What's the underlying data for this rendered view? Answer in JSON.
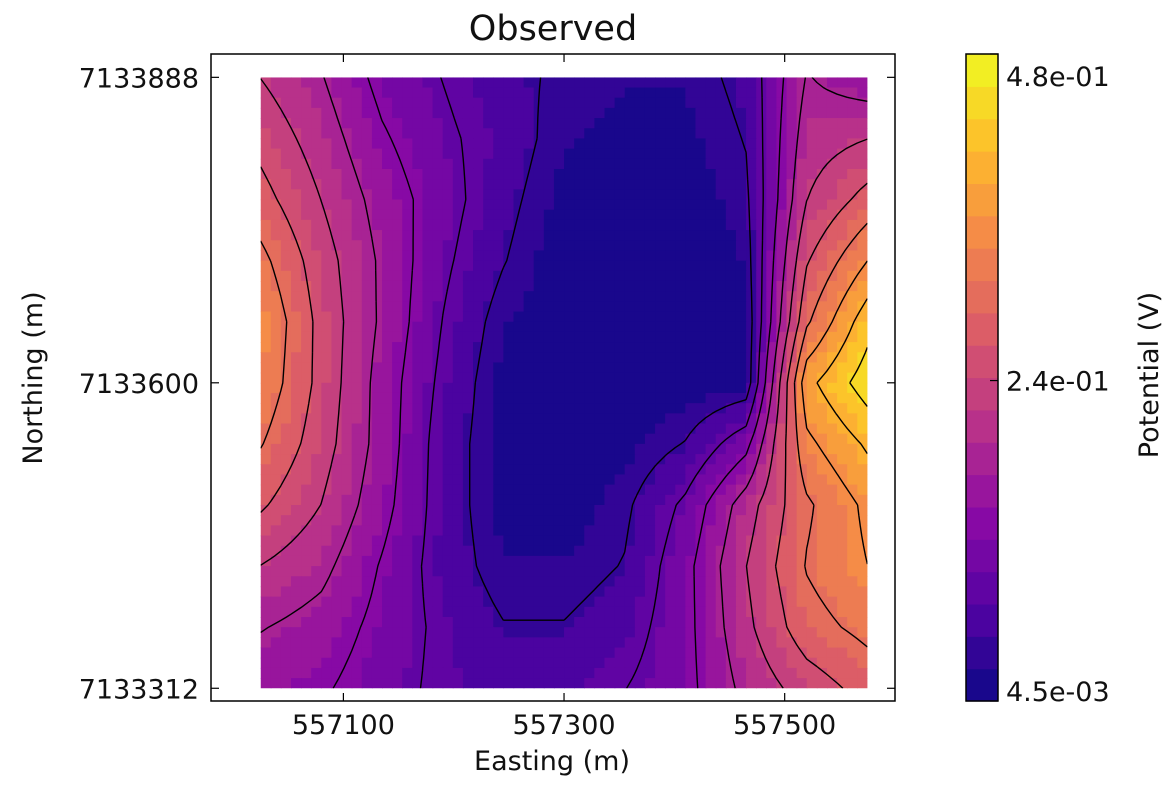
{
  "chart_data": {
    "type": "heatmap",
    "subtype": "filled-contour",
    "title": "Observed",
    "xlabel": "Easting (m)",
    "ylabel": "Northing (m)",
    "xlim": [
      556980,
      557600
    ],
    "ylim": [
      7133300,
      7133910
    ],
    "xticks": [
      557100,
      557300,
      557500
    ],
    "xtick_labels": [
      "557100",
      "557300",
      "557500"
    ],
    "yticks": [
      7133312,
      7133600,
      7133888
    ],
    "ytick_labels": [
      "7133312",
      "7133600",
      "7133888"
    ],
    "data_extent": {
      "x": [
        557025,
        557575
      ],
      "y": [
        7133312,
        7133888
      ]
    },
    "contour_lines": true,
    "grid": false,
    "colormap": "plasma",
    "colorbar": {
      "label": "Potential (V)",
      "min": 0.0045,
      "max": 0.48,
      "ticks": [
        0.0045,
        0.24,
        0.48
      ],
      "tick_labels": [
        "4.5e-03",
        "2.4e-01",
        "4.8e-01"
      ],
      "levels": 20
    },
    "x": [
      557025,
      557080,
      557135,
      557190,
      557245,
      557300,
      557355,
      557410,
      557465,
      557520,
      557575
    ],
    "y": [
      7133888,
      7133830,
      7133773,
      7133715,
      7133658,
      7133600,
      7133542,
      7133485,
      7133427,
      7133370,
      7133312
    ],
    "z": [
      [
        0.22,
        0.18,
        0.12,
        0.09,
        0.06,
        0.04,
        0.03,
        0.03,
        0.06,
        0.18,
        0.15
      ],
      [
        0.25,
        0.2,
        0.14,
        0.1,
        0.07,
        0.03,
        0.02,
        0.02,
        0.05,
        0.2,
        0.22
      ],
      [
        0.28,
        0.22,
        0.16,
        0.11,
        0.06,
        0.02,
        0.01,
        0.01,
        0.04,
        0.22,
        0.28
      ],
      [
        0.32,
        0.24,
        0.17,
        0.1,
        0.05,
        0.01,
        0.01,
        0.01,
        0.03,
        0.26,
        0.35
      ],
      [
        0.35,
        0.25,
        0.17,
        0.09,
        0.03,
        0.01,
        0.01,
        0.01,
        0.02,
        0.3,
        0.42
      ],
      [
        0.34,
        0.25,
        0.16,
        0.08,
        0.02,
        0.01,
        0.01,
        0.01,
        0.02,
        0.38,
        0.46
      ],
      [
        0.31,
        0.24,
        0.16,
        0.07,
        0.02,
        0.01,
        0.02,
        0.05,
        0.12,
        0.34,
        0.4
      ],
      [
        0.27,
        0.22,
        0.15,
        0.07,
        0.02,
        0.01,
        0.04,
        0.1,
        0.2,
        0.3,
        0.36
      ],
      [
        0.22,
        0.19,
        0.13,
        0.07,
        0.03,
        0.03,
        0.05,
        0.12,
        0.22,
        0.31,
        0.35
      ],
      [
        0.18,
        0.16,
        0.12,
        0.08,
        0.05,
        0.05,
        0.07,
        0.12,
        0.21,
        0.29,
        0.32
      ],
      [
        0.15,
        0.14,
        0.11,
        0.08,
        0.07,
        0.07,
        0.09,
        0.12,
        0.19,
        0.24,
        0.28
      ]
    ]
  }
}
